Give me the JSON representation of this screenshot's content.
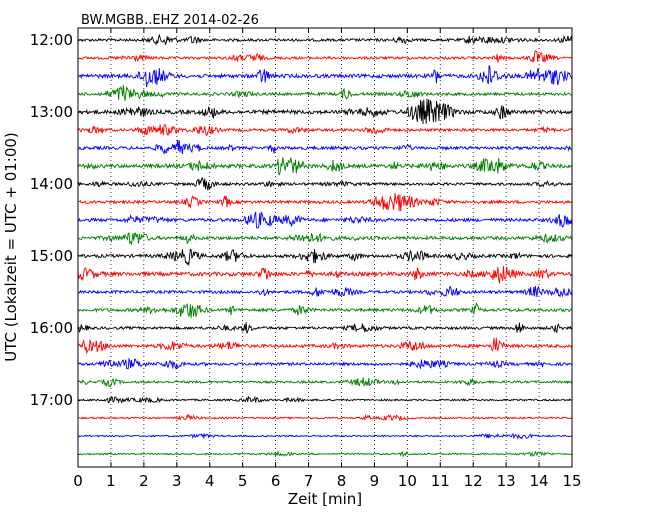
{
  "chart_data": {
    "type": "line",
    "title": "BW.MGBB..EHZ 2014-02-26",
    "xlabel": "Zeit  [min]",
    "ylabel": "UTC (Lokalzeit = UTC + 01:00)",
    "xlim": [
      0,
      15
    ],
    "x_ticks": [
      "0",
      "1",
      "2",
      "3",
      "4",
      "5",
      "6",
      "7",
      "8",
      "9",
      "10",
      "11",
      "12",
      "13",
      "14",
      "15"
    ],
    "y_ticks": [
      "12:00",
      "13:00",
      "14:00",
      "15:00",
      "16:00",
      "17:00"
    ],
    "grid": "vertical-dotted",
    "series_colors": [
      "#000000",
      "#ff0000",
      "#0000ff",
      "#008000"
    ],
    "series": [
      {
        "start": "12:00",
        "activity": 0.45
      },
      {
        "start": "12:15",
        "activity": 0.4
      },
      {
        "start": "12:30",
        "activity": 0.75
      },
      {
        "start": "12:45",
        "activity": 0.5
      },
      {
        "start": "13:00",
        "activity": 0.8
      },
      {
        "start": "13:15",
        "activity": 0.45
      },
      {
        "start": "13:30",
        "activity": 0.55
      },
      {
        "start": "13:45",
        "activity": 0.75
      },
      {
        "start": "14:00",
        "activity": 0.45
      },
      {
        "start": "14:15",
        "activity": 0.5
      },
      {
        "start": "14:30",
        "activity": 0.6
      },
      {
        "start": "14:45",
        "activity": 0.6
      },
      {
        "start": "15:00",
        "activity": 0.6
      },
      {
        "start": "15:15",
        "activity": 0.8
      },
      {
        "start": "15:30",
        "activity": 0.5
      },
      {
        "start": "15:45",
        "activity": 0.55
      },
      {
        "start": "16:00",
        "activity": 0.45
      },
      {
        "start": "16:15",
        "activity": 0.55
      },
      {
        "start": "16:30",
        "activity": 0.5
      },
      {
        "start": "16:45",
        "activity": 0.3
      },
      {
        "start": "17:00",
        "activity": 0.15
      },
      {
        "start": "17:15",
        "activity": 0.12
      },
      {
        "start": "17:30",
        "activity": 0.08
      },
      {
        "start": "17:45",
        "activity": 0.08
      }
    ]
  }
}
